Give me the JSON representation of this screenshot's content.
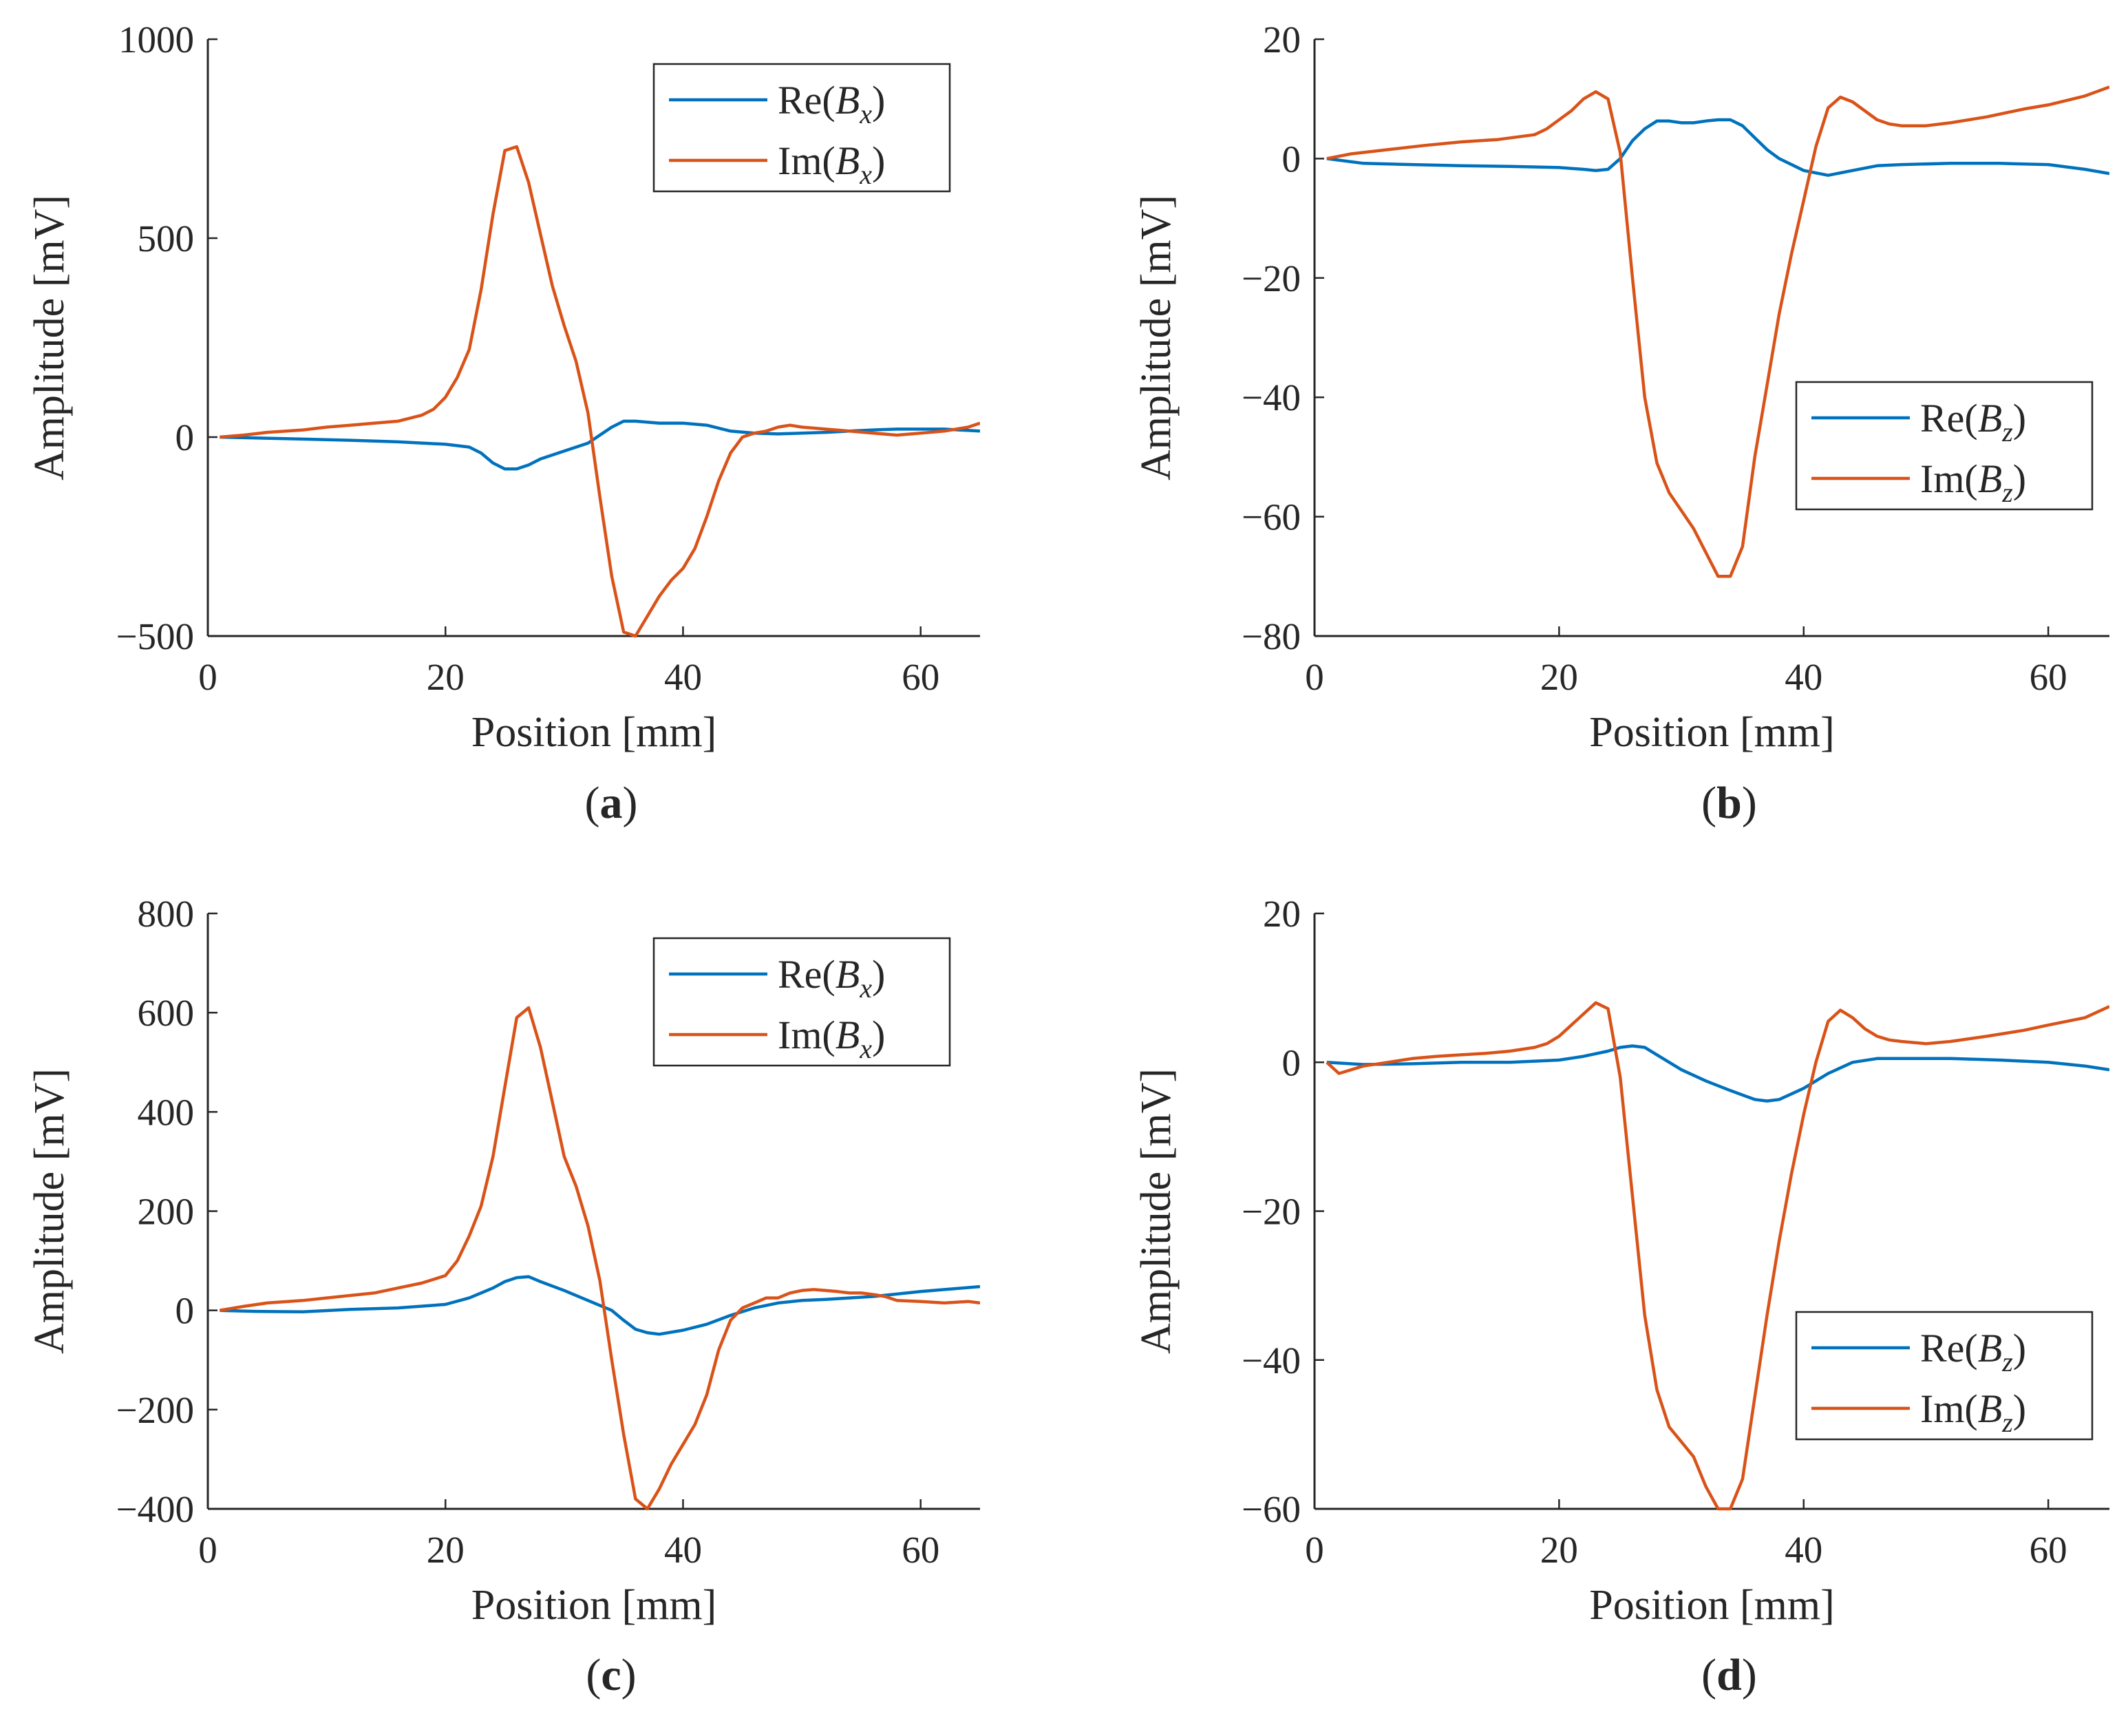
{
  "chart_data": [
    {
      "type": "line",
      "panel_caption": "a",
      "xlabel": "Position [mm]",
      "ylabel": "Amplitude [mV]",
      "xlim": [
        0,
        65
      ],
      "ylim": [
        -500,
        1000
      ],
      "xticks": [
        "0",
        "20",
        "40",
        "60"
      ],
      "yticks": [
        "−500",
        "0",
        "500",
        "1000"
      ],
      "xtick_values": [
        0,
        20,
        40,
        60
      ],
      "ytick_values": [
        -500,
        0,
        500,
        1000
      ],
      "legend_location": "top-right",
      "legend": [
        {
          "prefix": "Re",
          "var": "B",
          "sub": "x"
        },
        {
          "prefix": "Im",
          "var": "B",
          "sub": "x"
        }
      ],
      "series": [
        {
          "name": "Re(Bx)",
          "color": "#0072BD",
          "x": [
            1,
            4,
            8,
            12,
            16,
            20,
            22,
            23,
            24,
            25,
            26,
            27,
            28,
            30,
            32,
            34,
            35,
            36,
            38,
            40,
            42,
            44,
            46,
            48,
            50,
            52,
            54,
            56,
            58,
            60,
            62,
            65
          ],
          "y": [
            0,
            -2,
            -5,
            -8,
            -12,
            -18,
            -25,
            -40,
            -65,
            -80,
            -80,
            -70,
            -55,
            -35,
            -15,
            25,
            40,
            40,
            35,
            35,
            30,
            15,
            10,
            8,
            10,
            12,
            15,
            18,
            20,
            20,
            20,
            15
          ]
        },
        {
          "name": "Im(Bx)",
          "color": "#D95319",
          "x": [
            1,
            3,
            5,
            8,
            10,
            12,
            14,
            16,
            18,
            19,
            20,
            21,
            22,
            23,
            24,
            25,
            26,
            27,
            28,
            29,
            30,
            31,
            32,
            33,
            34,
            35,
            36,
            37,
            38,
            39,
            40,
            41,
            42,
            43,
            44,
            45,
            46,
            47,
            48,
            49,
            50,
            52,
            54,
            56,
            58,
            60,
            62,
            64,
            65
          ],
          "y": [
            0,
            5,
            12,
            18,
            25,
            30,
            35,
            40,
            55,
            70,
            100,
            150,
            220,
            370,
            560,
            720,
            730,
            640,
            510,
            380,
            280,
            190,
            60,
            -150,
            -350,
            -490,
            -500,
            -450,
            -400,
            -360,
            -330,
            -280,
            -200,
            -110,
            -40,
            0,
            10,
            15,
            25,
            30,
            25,
            20,
            15,
            10,
            5,
            10,
            15,
            25,
            35
          ]
        }
      ]
    },
    {
      "type": "line",
      "panel_caption": "b",
      "xlabel": "Position [mm]",
      "ylabel": "Amplitude [mV]",
      "xlim": [
        0,
        65
      ],
      "ylim": [
        -80,
        20
      ],
      "xticks": [
        "0",
        "20",
        "40",
        "60"
      ],
      "yticks": [
        "−80",
        "−60",
        "−40",
        "−20",
        "0",
        "20"
      ],
      "xtick_values": [
        0,
        20,
        40,
        60
      ],
      "ytick_values": [
        -80,
        -60,
        -40,
        -20,
        0,
        20
      ],
      "legend_location": "middle-right",
      "legend": [
        {
          "prefix": "Re",
          "var": "B",
          "sub": "z"
        },
        {
          "prefix": "Im",
          "var": "B",
          "sub": "z"
        }
      ],
      "series": [
        {
          "name": "Re(Bz)",
          "color": "#0072BD",
          "x": [
            1,
            4,
            8,
            12,
            16,
            20,
            22,
            23,
            24,
            25,
            26,
            27,
            28,
            29,
            30,
            31,
            32,
            33,
            34,
            35,
            36,
            37,
            38,
            40,
            42,
            44,
            46,
            48,
            52,
            56,
            60,
            63,
            65
          ],
          "y": [
            0,
            -0.8,
            -1,
            -1.2,
            -1.3,
            -1.5,
            -1.8,
            -2,
            -1.8,
            0,
            3,
            5,
            6.3,
            6.3,
            6,
            6,
            6.3,
            6.5,
            6.5,
            5.5,
            3.5,
            1.5,
            0,
            -2,
            -2.8,
            -2,
            -1.2,
            -1,
            -0.8,
            -0.8,
            -1,
            -1.8,
            -2.5
          ]
        },
        {
          "name": "Im(Bz)",
          "color": "#D95319",
          "x": [
            1,
            3,
            6,
            9,
            12,
            15,
            18,
            19,
            20,
            21,
            22,
            23,
            24,
            25,
            26,
            27,
            28,
            29,
            30,
            31,
            32,
            33,
            34,
            35,
            36,
            37,
            38,
            39,
            40,
            41,
            42,
            43,
            44,
            45,
            46,
            47,
            48,
            50,
            52,
            55,
            58,
            60,
            63,
            65
          ],
          "y": [
            0,
            0.8,
            1.5,
            2.2,
            2.8,
            3.2,
            4,
            5,
            6.5,
            8,
            10,
            11.2,
            10,
            1,
            -20,
            -40,
            -51,
            -56,
            -59,
            -62,
            -66,
            -70,
            -70,
            -65,
            -50,
            -38,
            -26,
            -16,
            -7,
            2,
            8.5,
            10.3,
            9.5,
            8,
            6.5,
            5.8,
            5.5,
            5.5,
            6,
            7,
            8.3,
            9,
            10.5,
            12
          ]
        }
      ]
    },
    {
      "type": "line",
      "panel_caption": "c",
      "xlabel": "Position [mm]",
      "ylabel": "Amplitude [mV]",
      "xlim": [
        0,
        65
      ],
      "ylim": [
        -400,
        800
      ],
      "xticks": [
        "0",
        "20",
        "40",
        "60"
      ],
      "yticks": [
        "−400",
        "−200",
        "0",
        "200",
        "400",
        "600",
        "800"
      ],
      "xtick_values": [
        0,
        20,
        40,
        60
      ],
      "ytick_values": [
        -400,
        -200,
        0,
        200,
        400,
        600,
        800
      ],
      "legend_location": "top-right",
      "legend": [
        {
          "prefix": "Re",
          "var": "B",
          "sub": "x"
        },
        {
          "prefix": "Im",
          "var": "B",
          "sub": "x"
        }
      ],
      "series": [
        {
          "name": "Re(Bx)",
          "color": "#0072BD",
          "x": [
            1,
            4,
            8,
            12,
            16,
            20,
            22,
            24,
            25,
            26,
            27,
            28,
            30,
            32,
            34,
            35,
            36,
            37,
            38,
            40,
            42,
            44,
            46,
            48,
            50,
            52,
            56,
            60,
            62,
            65
          ],
          "y": [
            0,
            -2,
            -3,
            2,
            5,
            12,
            25,
            45,
            58,
            66,
            68,
            58,
            40,
            20,
            0,
            -20,
            -38,
            -45,
            -48,
            -40,
            -28,
            -10,
            5,
            15,
            20,
            22,
            28,
            38,
            42,
            48
          ]
        },
        {
          "name": "Im(Bx)",
          "color": "#D95319",
          "x": [
            1,
            3,
            5,
            8,
            10,
            12,
            14,
            16,
            18,
            20,
            21,
            22,
            23,
            24,
            25,
            26,
            27,
            28,
            29,
            30,
            31,
            32,
            33,
            34,
            35,
            36,
            37,
            38,
            39,
            40,
            41,
            42,
            43,
            44,
            45,
            46,
            47,
            48,
            49,
            50,
            51,
            52,
            53,
            54,
            55,
            56,
            57,
            58,
            60,
            62,
            64,
            65
          ],
          "y": [
            0,
            8,
            15,
            20,
            25,
            30,
            35,
            45,
            55,
            70,
            100,
            150,
            210,
            310,
            450,
            590,
            610,
            530,
            420,
            310,
            250,
            170,
            60,
            -100,
            -250,
            -380,
            -400,
            -360,
            -310,
            -270,
            -230,
            -170,
            -80,
            -20,
            5,
            15,
            25,
            25,
            35,
            40,
            42,
            40,
            38,
            35,
            35,
            32,
            28,
            20,
            18,
            15,
            18,
            15
          ]
        }
      ]
    },
    {
      "type": "line",
      "panel_caption": "d",
      "xlabel": "Position [mm]",
      "ylabel": "Amplitude [mV]",
      "xlim": [
        0,
        65
      ],
      "ylim": [
        -60,
        20
      ],
      "xticks": [
        "0",
        "20",
        "40",
        "60"
      ],
      "yticks": [
        "−60",
        "−40",
        "−20",
        "0",
        "20"
      ],
      "xtick_values": [
        0,
        20,
        40,
        60
      ],
      "ytick_values": [
        -60,
        -40,
        -20,
        0,
        20
      ],
      "legend_location": "bottom-right",
      "legend": [
        {
          "prefix": "Re",
          "var": "B",
          "sub": "z"
        },
        {
          "prefix": "Im",
          "var": "B",
          "sub": "z"
        }
      ],
      "series": [
        {
          "name": "Re(Bz)",
          "color": "#0072BD",
          "x": [
            1,
            4,
            8,
            12,
            16,
            20,
            22,
            24,
            25,
            26,
            27,
            28,
            30,
            32,
            34,
            36,
            37,
            38,
            40,
            42,
            44,
            46,
            48,
            52,
            56,
            60,
            63,
            65
          ],
          "y": [
            0,
            -0.3,
            -0.2,
            0,
            0,
            0.3,
            0.8,
            1.5,
            2,
            2.2,
            2,
            1,
            -1,
            -2.5,
            -3.8,
            -5,
            -5.2,
            -5,
            -3.5,
            -1.5,
            0,
            0.5,
            0.5,
            0.5,
            0.3,
            0,
            -0.5,
            -1
          ]
        },
        {
          "name": "Im(Bz)",
          "color": "#D95319",
          "x": [
            1,
            2,
            4,
            6,
            8,
            10,
            12,
            14,
            16,
            18,
            19,
            20,
            21,
            22,
            23,
            24,
            25,
            26,
            27,
            28,
            29,
            30,
            31,
            32,
            33,
            34,
            35,
            36,
            37,
            38,
            39,
            40,
            41,
            42,
            43,
            44,
            45,
            46,
            47,
            48,
            50,
            52,
            55,
            58,
            60,
            63,
            65
          ],
          "y": [
            0,
            -1.5,
            -0.5,
            0,
            0.5,
            0.8,
            1,
            1.2,
            1.5,
            2,
            2.5,
            3.5,
            5,
            6.5,
            8,
            7.2,
            -2,
            -18,
            -34,
            -44,
            -49,
            -51,
            -53,
            -57,
            -60,
            -60,
            -56,
            -45,
            -34,
            -24,
            -15,
            -7,
            0,
            5.5,
            7,
            6,
            4.5,
            3.5,
            3,
            2.8,
            2.5,
            2.8,
            3.5,
            4.3,
            5,
            6,
            7.5
          ]
        }
      ]
    }
  ]
}
